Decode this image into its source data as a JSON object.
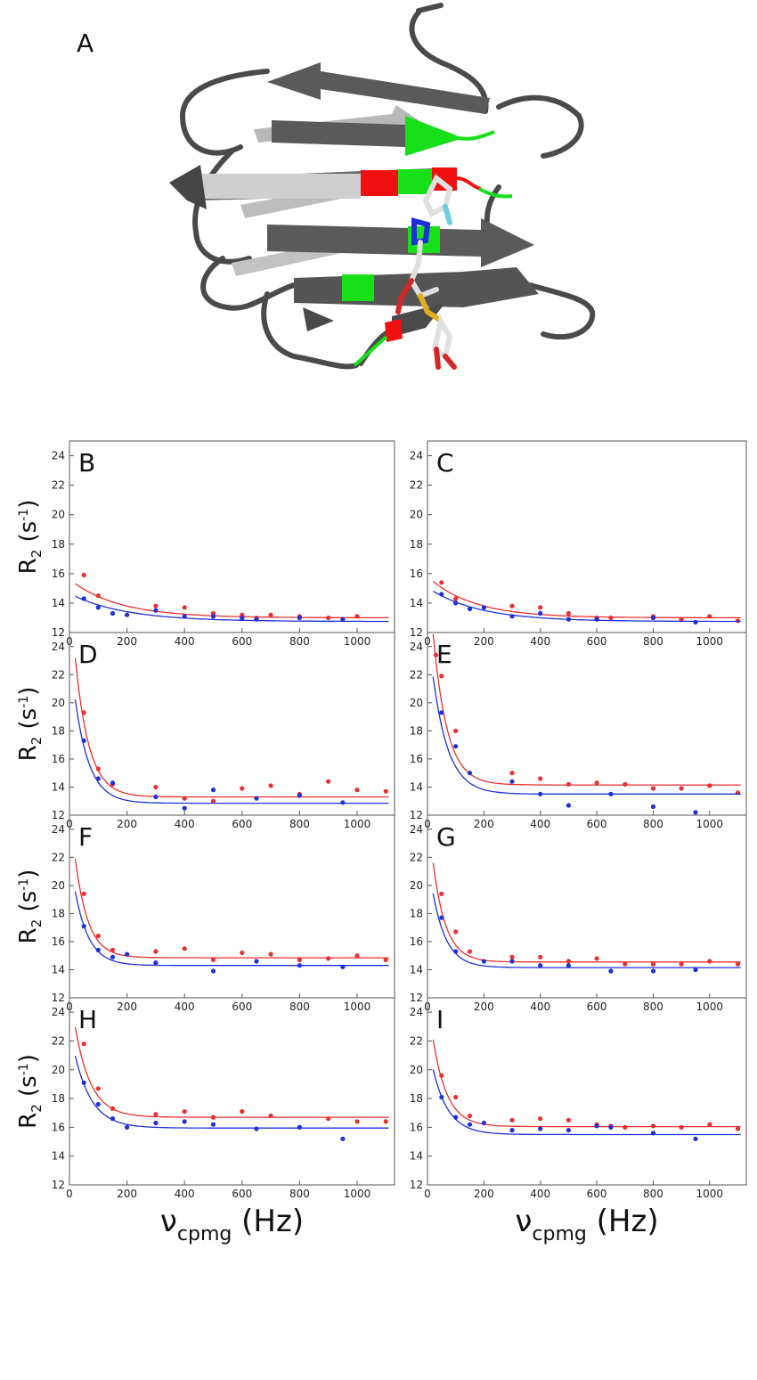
{
  "figure": {
    "panel_a_label": "A",
    "structure_colors": {
      "strand_dark": "#5a5a5a",
      "strand_light": "#b8b8b8",
      "highlight_green": "#18e018",
      "highlight_red": "#f01010",
      "ligand_blue": "#1c2fd8",
      "ligand_sulfur": "#e0b020",
      "ligand_oxygen": "#d02828"
    },
    "y_axis_title_main": "R",
    "y_axis_title_sub": "2",
    "y_axis_title_unit_open": " (s",
    "y_axis_title_unit_sup": "-1",
    "y_axis_title_unit_close": ")",
    "x_axis_title_main": "ν",
    "x_axis_title_sub": "cpmg",
    "x_axis_title_unit": " (Hz)",
    "series_colors": {
      "red": "#e83030",
      "blue": "#2030d8"
    }
  },
  "chart_data": [
    {
      "type": "scatter",
      "label": "B",
      "xlim": [
        0,
        1130
      ],
      "ylim": [
        12,
        25
      ],
      "xticks": [
        "0",
        "200",
        "400",
        "600",
        "800",
        "1000"
      ],
      "yticks": [
        "12",
        "14",
        "16",
        "18",
        "20",
        "22",
        "24"
      ],
      "series": [
        {
          "name": "red",
          "x": [
            50,
            100,
            300,
            400,
            500,
            600,
            650,
            700,
            800,
            900,
            1000
          ],
          "y": [
            15.9,
            14.5,
            13.8,
            13.7,
            13.3,
            13.2,
            13.0,
            13.2,
            13.1,
            13.0,
            13.1
          ],
          "fit": {
            "base": 13.0,
            "amp": 2.6,
            "tau": 170
          }
        },
        {
          "name": "blue",
          "x": [
            50,
            100,
            150,
            200,
            300,
            400,
            500,
            600,
            650,
            800,
            950
          ],
          "y": [
            14.3,
            13.7,
            13.3,
            13.2,
            13.5,
            13.1,
            13.1,
            13.0,
            12.9,
            13.0,
            12.9
          ],
          "fit": {
            "base": 12.75,
            "amp": 1.9,
            "tau": 190
          }
        }
      ]
    },
    {
      "type": "scatter",
      "label": "C",
      "xlim": [
        0,
        1130
      ],
      "ylim": [
        12,
        25
      ],
      "xticks": [
        "0",
        "200",
        "400",
        "600",
        "800",
        "1000"
      ],
      "yticks": [
        "12",
        "14",
        "16",
        "18",
        "20",
        "22",
        "24"
      ],
      "series": [
        {
          "name": "red",
          "x": [
            50,
            100,
            300,
            400,
            500,
            600,
            650,
            800,
            900,
            1000,
            1100
          ],
          "y": [
            15.4,
            14.3,
            13.8,
            13.7,
            13.3,
            13.0,
            13.0,
            13.1,
            12.9,
            13.1,
            12.8
          ],
          "fit": {
            "base": 13.0,
            "amp": 2.8,
            "tau": 160
          }
        },
        {
          "name": "blue",
          "x": [
            50,
            100,
            150,
            200,
            300,
            400,
            500,
            600,
            800,
            950
          ],
          "y": [
            14.6,
            14.0,
            13.6,
            13.7,
            13.1,
            13.3,
            12.9,
            12.9,
            13.0,
            12.7
          ],
          "fit": {
            "base": 12.75,
            "amp": 2.3,
            "tau": 180
          }
        }
      ]
    },
    {
      "type": "scatter",
      "label": "D",
      "xlim": [
        0,
        1130
      ],
      "ylim": [
        12,
        25
      ],
      "xticks": [
        "0",
        "200",
        "400",
        "600",
        "800",
        "1000"
      ],
      "yticks": [
        "12",
        "14",
        "16",
        "18",
        "20",
        "22",
        "24"
      ],
      "series": [
        {
          "name": "red",
          "x": [
            50,
            100,
            150,
            300,
            400,
            500,
            600,
            700,
            800,
            900,
            1000,
            1100
          ],
          "y": [
            19.3,
            15.3,
            14.2,
            14.0,
            13.2,
            13.0,
            13.9,
            14.1,
            13.5,
            14.4,
            13.8,
            13.7
          ],
          "fit": {
            "base": 13.3,
            "amp": 15.0,
            "tau": 48
          }
        },
        {
          "name": "blue",
          "x": [
            50,
            100,
            150,
            300,
            400,
            500,
            650,
            800,
            950
          ],
          "y": [
            17.3,
            14.6,
            14.3,
            13.3,
            12.5,
            13.8,
            13.2,
            13.4,
            12.9
          ],
          "fit": {
            "base": 12.85,
            "amp": 11.0,
            "tau": 50
          }
        }
      ]
    },
    {
      "type": "scatter",
      "label": "E",
      "xlim": [
        0,
        1130
      ],
      "ylim": [
        12,
        25
      ],
      "xticks": [
        "0",
        "200",
        "400",
        "600",
        "800",
        "1000"
      ],
      "yticks": [
        "12",
        "14",
        "16",
        "18",
        "20",
        "22",
        "24"
      ],
      "series": [
        {
          "name": "red",
          "x": [
            30,
            50,
            100,
            300,
            400,
            500,
            600,
            700,
            800,
            900,
            1000,
            1100
          ],
          "y": [
            23.4,
            21.9,
            18.0,
            15.0,
            14.6,
            14.2,
            14.3,
            14.2,
            13.9,
            13.9,
            14.1,
            13.6
          ],
          "fit": {
            "base": 14.15,
            "amp": 16.0,
            "tau": 50
          }
        },
        {
          "name": "blue",
          "x": [
            50,
            100,
            150,
            300,
            400,
            500,
            650,
            800,
            950
          ],
          "y": [
            19.3,
            16.9,
            15.0,
            14.4,
            13.5,
            12.7,
            13.5,
            12.6,
            12.2
          ],
          "fit": {
            "base": 13.5,
            "amp": 12.0,
            "tau": 55
          }
        }
      ]
    },
    {
      "type": "scatter",
      "label": "F",
      "xlim": [
        0,
        1130
      ],
      "ylim": [
        12,
        25
      ],
      "xticks": [
        "0",
        "200",
        "400",
        "600",
        "800",
        "1000"
      ],
      "yticks": [
        "12",
        "14",
        "16",
        "18",
        "20",
        "22",
        "24"
      ],
      "series": [
        {
          "name": "red",
          "x": [
            50,
            100,
            150,
            300,
            400,
            500,
            600,
            700,
            800,
            900,
            1000,
            1100
          ],
          "y": [
            19.4,
            16.4,
            15.4,
            15.3,
            15.5,
            14.7,
            15.2,
            15.1,
            14.7,
            14.8,
            15.0,
            14.7
          ],
          "fit": {
            "base": 14.85,
            "amp": 11.0,
            "tau": 45
          }
        },
        {
          "name": "blue",
          "x": [
            50,
            100,
            150,
            200,
            300,
            500,
            650,
            800,
            950
          ],
          "y": [
            17.1,
            15.4,
            14.9,
            15.1,
            14.5,
            13.9,
            14.6,
            14.3,
            14.2
          ],
          "fit": {
            "base": 14.3,
            "amp": 8.0,
            "tau": 48
          }
        }
      ]
    },
    {
      "type": "scatter",
      "label": "G",
      "xlim": [
        0,
        1130
      ],
      "ylim": [
        12,
        25
      ],
      "xticks": [
        "0",
        "200",
        "400",
        "600",
        "800",
        "1000"
      ],
      "yticks": [
        "12",
        "14",
        "16",
        "18",
        "20",
        "22",
        "24"
      ],
      "series": [
        {
          "name": "red",
          "x": [
            50,
            100,
            150,
            300,
            400,
            500,
            600,
            700,
            800,
            900,
            1000,
            1100
          ],
          "y": [
            19.4,
            16.7,
            15.3,
            14.9,
            14.9,
            14.6,
            14.8,
            14.4,
            14.4,
            14.4,
            14.6,
            14.4
          ],
          "fit": {
            "base": 14.55,
            "amp": 11.0,
            "tau": 45
          }
        },
        {
          "name": "blue",
          "x": [
            50,
            100,
            200,
            300,
            400,
            500,
            650,
            800,
            950
          ],
          "y": [
            17.7,
            15.3,
            14.6,
            14.6,
            14.3,
            14.3,
            13.9,
            13.9,
            14.0
          ],
          "fit": {
            "base": 14.15,
            "amp": 8.0,
            "tau": 48
          }
        }
      ]
    },
    {
      "type": "scatter",
      "label": "H",
      "xlim": [
        0,
        1130
      ],
      "ylim": [
        12,
        25
      ],
      "xticks": [
        "0",
        "200",
        "400",
        "600",
        "800",
        "1000"
      ],
      "yticks": [
        "12",
        "14",
        "16",
        "18",
        "20",
        "22",
        "24"
      ],
      "series": [
        {
          "name": "red",
          "x": [
            50,
            100,
            150,
            300,
            400,
            500,
            600,
            700,
            800,
            900,
            1000,
            1100
          ],
          "y": [
            21.8,
            18.7,
            17.3,
            16.9,
            17.1,
            16.7,
            17.1,
            16.8,
            16.0,
            16.6,
            16.4,
            16.4
          ],
          "fit": {
            "base": 16.7,
            "amp": 9.0,
            "tau": 55
          }
        },
        {
          "name": "blue",
          "x": [
            50,
            100,
            150,
            200,
            300,
            400,
            500,
            650,
            800,
            950
          ],
          "y": [
            19.1,
            17.6,
            16.6,
            16.0,
            16.3,
            16.4,
            16.2,
            15.9,
            16.0,
            15.2
          ],
          "fit": {
            "base": 15.95,
            "amp": 7.0,
            "tau": 60
          }
        }
      ]
    },
    {
      "type": "scatter",
      "label": "I",
      "xlim": [
        0,
        1130
      ],
      "ylim": [
        12,
        25
      ],
      "xticks": [
        "0",
        "200",
        "400",
        "600",
        "800",
        "1000"
      ],
      "yticks": [
        "12",
        "14",
        "16",
        "18",
        "20",
        "22",
        "24"
      ],
      "series": [
        {
          "name": "red",
          "x": [
            50,
            100,
            150,
            300,
            400,
            500,
            600,
            650,
            700,
            800,
            900,
            1000,
            1100
          ],
          "y": [
            19.6,
            18.1,
            16.8,
            16.5,
            16.6,
            16.5,
            16.2,
            16.1,
            16.0,
            16.1,
            16.0,
            16.2,
            15.9
          ],
          "fit": {
            "base": 16.05,
            "amp": 9.0,
            "tau": 50
          }
        },
        {
          "name": "blue",
          "x": [
            50,
            100,
            150,
            200,
            300,
            400,
            500,
            600,
            650,
            800,
            950
          ],
          "y": [
            18.1,
            16.7,
            16.2,
            16.3,
            15.8,
            15.9,
            15.8,
            16.1,
            16.0,
            15.6,
            15.2
          ],
          "fit": {
            "base": 15.5,
            "amp": 6.5,
            "tau": 55
          }
        }
      ]
    }
  ]
}
